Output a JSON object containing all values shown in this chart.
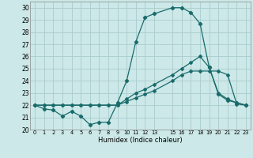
{
  "xlabel": "Humidex (Indice chaleur)",
  "background_color": "#cce8e8",
  "grid_color": "#aacccc",
  "line_color": "#1a6b6b",
  "xlim": [
    -0.5,
    23.5
  ],
  "ylim": [
    20,
    30.5
  ],
  "x_ticks": [
    0,
    1,
    2,
    3,
    4,
    5,
    6,
    7,
    8,
    9,
    10,
    11,
    12,
    13,
    15,
    16,
    17,
    18,
    19,
    20,
    21,
    22,
    23
  ],
  "x_tick_labels": [
    "0",
    "1",
    "2",
    "3",
    "4",
    "5",
    "6",
    "7",
    "8",
    "9",
    "10",
    "11",
    "12",
    "13",
    "15",
    "16",
    "17",
    "18",
    "19",
    "20",
    "21",
    "22",
    "23"
  ],
  "y_ticks": [
    20,
    21,
    22,
    23,
    24,
    25,
    26,
    27,
    28,
    29,
    30
  ],
  "series1_x": [
    0,
    1,
    2,
    3,
    4,
    5,
    6,
    7,
    8,
    9,
    10,
    11,
    12,
    13,
    15,
    16,
    17,
    18,
    19,
    20,
    21,
    22,
    23
  ],
  "series1_y": [
    22.0,
    21.7,
    21.6,
    21.1,
    21.5,
    21.1,
    20.4,
    20.6,
    20.6,
    22.2,
    24.0,
    27.2,
    29.2,
    29.5,
    30.0,
    30.0,
    29.6,
    28.7,
    25.1,
    22.9,
    22.4,
    22.2,
    22.0
  ],
  "series2_x": [
    0,
    1,
    2,
    3,
    4,
    5,
    6,
    7,
    8,
    9,
    10,
    11,
    12,
    13,
    15,
    16,
    17,
    18,
    19,
    20,
    21,
    22,
    23
  ],
  "series2_y": [
    22.0,
    22.0,
    22.0,
    22.0,
    22.0,
    22.0,
    22.0,
    22.0,
    22.0,
    22.0,
    22.5,
    23.0,
    23.3,
    23.7,
    24.5,
    25.0,
    25.5,
    26.0,
    25.1,
    23.0,
    22.5,
    22.2,
    22.0
  ],
  "series3_x": [
    0,
    1,
    2,
    3,
    4,
    5,
    6,
    7,
    8,
    9,
    10,
    11,
    12,
    13,
    15,
    16,
    17,
    18,
    19,
    20,
    21,
    22,
    23
  ],
  "series3_y": [
    22.0,
    22.0,
    22.0,
    22.0,
    22.0,
    22.0,
    22.0,
    22.0,
    22.0,
    22.0,
    22.3,
    22.6,
    22.9,
    23.2,
    24.0,
    24.5,
    24.8,
    24.8,
    24.8,
    24.8,
    24.5,
    22.1,
    22.0
  ]
}
